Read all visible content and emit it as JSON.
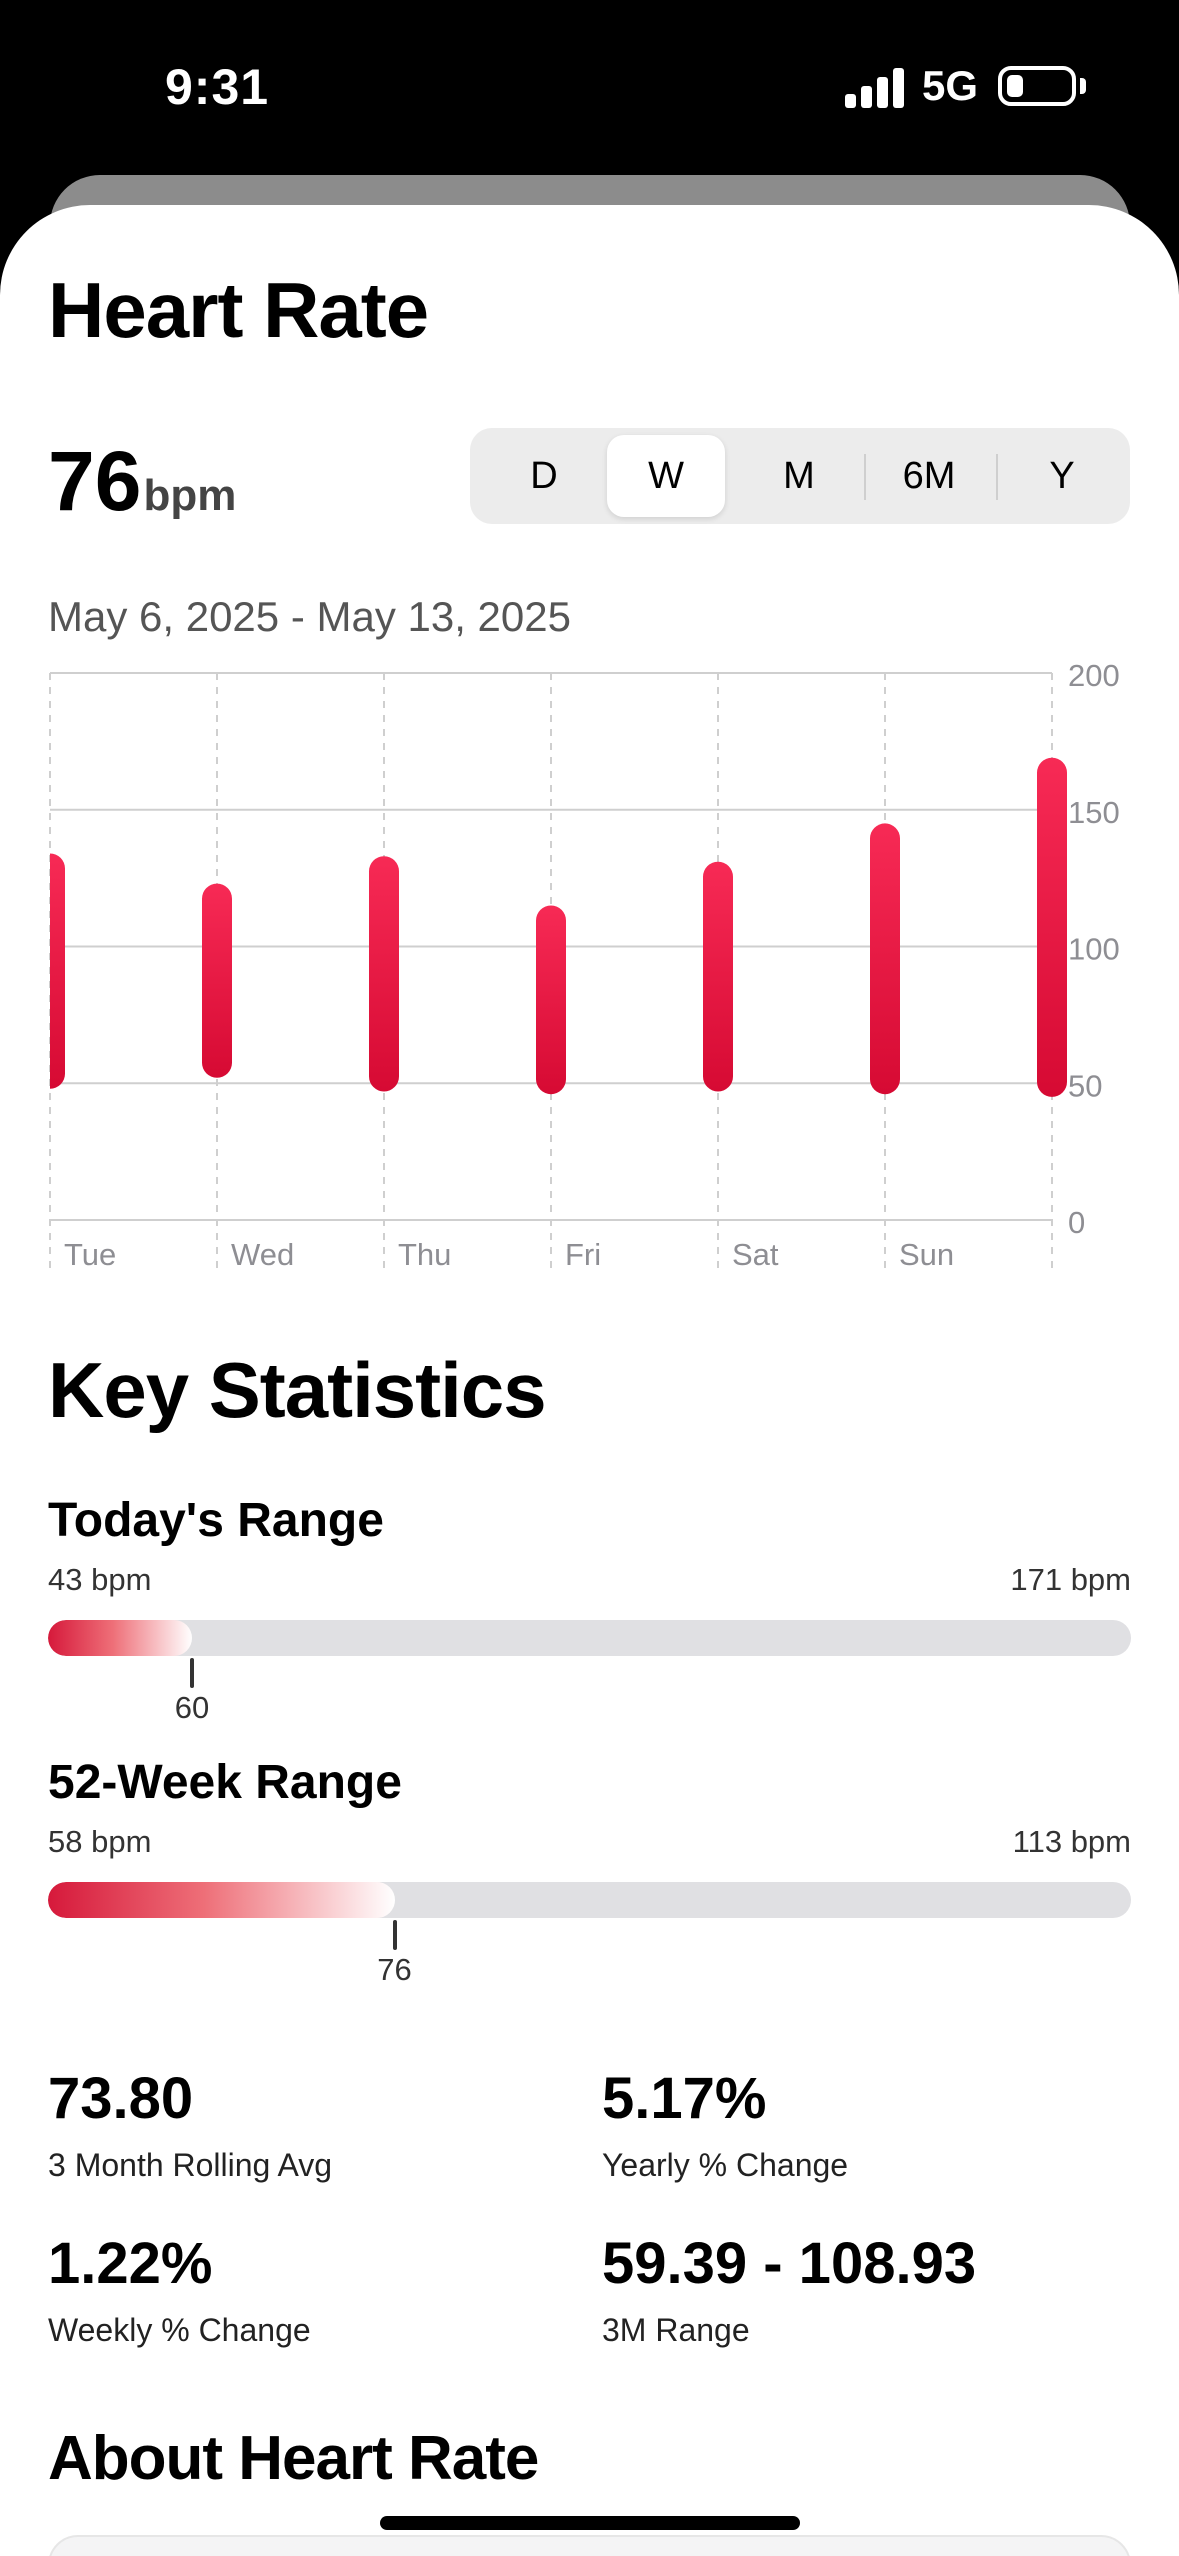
{
  "status_bar": {
    "time": "9:31",
    "network": "5G"
  },
  "header": {
    "title": "Heart Rate"
  },
  "current": {
    "value": "76",
    "unit": "bpm"
  },
  "segments": [
    {
      "label": "D",
      "selected": false
    },
    {
      "label": "W",
      "selected": true
    },
    {
      "label": "M",
      "selected": false
    },
    {
      "label": "6M",
      "selected": false
    },
    {
      "label": "Y",
      "selected": false
    }
  ],
  "date_range": "May 6, 2025 - May 13, 2025",
  "chart_data": {
    "type": "bar",
    "subtype": "range",
    "categories": [
      "Tue",
      "Wed",
      "Thu",
      "Fri",
      "Sat",
      "Sun",
      ""
    ],
    "series": [
      {
        "lows": [
          48,
          52,
          47,
          46,
          47,
          46,
          45
        ],
        "highs": [
          134,
          123,
          133,
          115,
          131,
          145,
          169
        ]
      }
    ],
    "y_ticks": [
      "0",
      "50",
      "100",
      "150",
      "200"
    ],
    "ylim": [
      0,
      200
    ],
    "grid": true,
    "bar_color": "#e5173f"
  },
  "key_stats": {
    "title": "Key Statistics",
    "todays_range": {
      "title": "Today's Range",
      "min": "43 bpm",
      "max": "171 bpm",
      "marker": "60",
      "fill_fraction": 0.133
    },
    "week52_range": {
      "title": "52-Week Range",
      "min": "58 bpm",
      "max": "113 bpm",
      "marker": "76",
      "fill_fraction": 0.32
    },
    "stats": [
      {
        "value": "73.80",
        "label": "3 Month Rolling Avg"
      },
      {
        "value": "5.17%",
        "label": "Yearly % Change"
      },
      {
        "value": "1.22%",
        "label": "Weekly % Change"
      },
      {
        "value": "59.39 - 108.93",
        "label": "3M Range"
      }
    ]
  },
  "about": {
    "title": "About Heart Rate"
  }
}
